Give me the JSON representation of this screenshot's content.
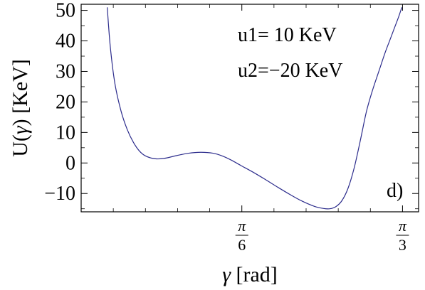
{
  "chart_data": {
    "type": "line",
    "xlabel_var": "γ",
    "xlabel_unit": " [rad]",
    "ylabel_prefix": "U(",
    "ylabel_var": "γ",
    "ylabel_suffix": ") [KeV]",
    "xlim": [
      0.0,
      1.0996
    ],
    "ylim": [
      -16,
      52
    ],
    "y_ticks": [
      {
        "value": 50,
        "label": "50"
      },
      {
        "value": 40,
        "label": "40"
      },
      {
        "value": 30,
        "label": "30"
      },
      {
        "value": 20,
        "label": "20"
      },
      {
        "value": 10,
        "label": "10"
      },
      {
        "value": 0,
        "label": "0"
      },
      {
        "value": -10,
        "label": "−10"
      }
    ],
    "x_ticks": [
      {
        "value": 0.5236,
        "numerator": "π",
        "denominator": "6"
      },
      {
        "value": 1.0472,
        "numerator": "π",
        "denominator": "3"
      }
    ],
    "annotations": [
      "u1=  10 KeV",
      "u2=−20 KeV",
      "d)"
    ],
    "line_color": "#2c2c8c",
    "grid": false,
    "series": [
      {
        "x": [
          0.085,
          0.095,
          0.11,
          0.13,
          0.15,
          0.17,
          0.19,
          0.21,
          0.24,
          0.27,
          0.31,
          0.35,
          0.39,
          0.43,
          0.46,
          0.49,
          0.52,
          0.56,
          0.6,
          0.64,
          0.68,
          0.72,
          0.76,
          0.79,
          0.81,
          0.83,
          0.85,
          0.87,
          0.89,
          0.91,
          0.93,
          0.95,
          0.97,
          0.99,
          1.005,
          1.02,
          1.035,
          1.045
        ],
        "y": [
          51,
          38,
          26,
          17,
          11,
          6.8,
          3.9,
          2.3,
          1.4,
          1.5,
          2.4,
          3.2,
          3.5,
          3.2,
          2.3,
          0.9,
          -0.8,
          -3.0,
          -5.4,
          -7.9,
          -10.3,
          -12.5,
          -14.2,
          -14.9,
          -15.0,
          -14.3,
          -12.3,
          -8.2,
          -1.5,
          7.5,
          17,
          24,
          30,
          36,
          40,
          44,
          48,
          51
        ]
      }
    ]
  }
}
